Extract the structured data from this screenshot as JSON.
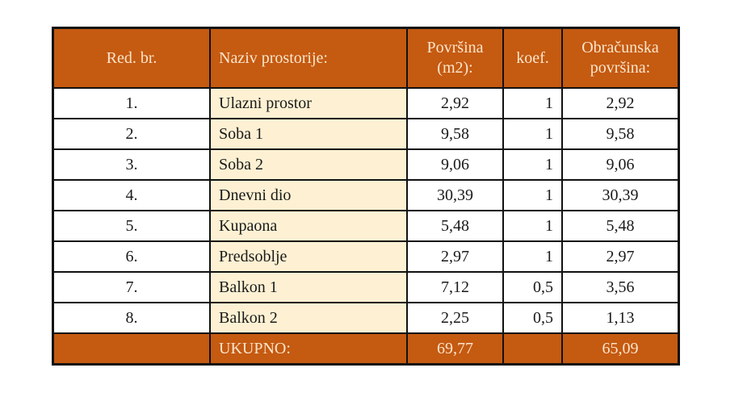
{
  "header": [
    "Red. br.",
    "Naziv prostorije:",
    "Površina (m2):",
    "koef.",
    "Obračunska površina:"
  ],
  "rows": [
    [
      "1.",
      "Ulazni prostor",
      "2,92",
      "1",
      "2,92"
    ],
    [
      "2.",
      "Soba 1",
      "9,58",
      "1",
      "9,58"
    ],
    [
      "3.",
      "Soba 2",
      "9,06",
      "1",
      "9,06"
    ],
    [
      "4.",
      "Dnevni dio",
      "30,39",
      "1",
      "30,39"
    ],
    [
      "5.",
      "Kupaona",
      "5,48",
      "1",
      "5,48"
    ],
    [
      "6.",
      "Predsoblje",
      "2,97",
      "1",
      "2,97"
    ],
    [
      "7.",
      "Balkon 1",
      "7,12",
      "0,5",
      "3,56"
    ],
    [
      "8.",
      "Balkon 2",
      "2,25",
      "0,5",
      "1,13"
    ]
  ],
  "total": [
    "",
    "UKUPNO:",
    "69,77",
    "",
    "65,09"
  ],
  "colors": {
    "header_bg": "#C55A11",
    "header_text": "#FBE6CC",
    "name_col_bg": "#FEF1D3"
  }
}
